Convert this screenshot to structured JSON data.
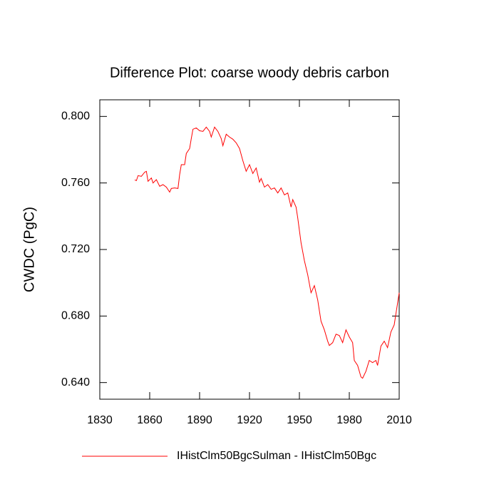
{
  "chart_data": {
    "type": "line",
    "title": "Difference Plot: coarse woody debris carbon",
    "y_label": "CWDC  (PgC)",
    "xlim": [
      1830,
      2010
    ],
    "xticks": [
      1830,
      1860,
      1890,
      1920,
      1950,
      1980,
      2010
    ],
    "ylim": [
      0.63,
      0.81
    ],
    "yticks": [
      {
        "value": 0.64,
        "label": "0.640"
      },
      {
        "value": 0.68,
        "label": "0.680"
      },
      {
        "value": 0.72,
        "label": "0.720"
      },
      {
        "value": 0.76,
        "label": "0.760"
      },
      {
        "value": 0.8,
        "label": "0.800"
      }
    ],
    "x": [
      1851,
      1852,
      1853,
      1855,
      1857,
      1858,
      1859,
      1861,
      1862,
      1864,
      1866,
      1868,
      1870,
      1872,
      1873,
      1875,
      1877,
      1878,
      1879,
      1881,
      1882,
      1884,
      1885,
      1886,
      1888,
      1890,
      1892,
      1894,
      1896,
      1897,
      1899,
      1901,
      1903,
      1904,
      1906,
      1908,
      1910,
      1912,
      1914,
      1916,
      1918,
      1920,
      1922,
      1924,
      1926,
      1927,
      1929,
      1931,
      1933,
      1935,
      1937,
      1939,
      1941,
      1943,
      1945,
      1946,
      1948,
      1949,
      1951,
      1953,
      1955,
      1957,
      1959,
      1961,
      1963,
      1965,
      1967,
      1968,
      1970,
      1972,
      1974,
      1976,
      1978,
      1980,
      1982,
      1983,
      1985,
      1987,
      1988,
      1990,
      1992,
      1994,
      1996,
      1997,
      1999,
      2001,
      2003,
      2005,
      2007,
      2008,
      2010
    ],
    "series": [
      {
        "name": "IHistClm50BgcSulman - IHistClm50Bgc",
        "color": "#ff0000",
        "values": [
          0.7618,
          0.7614,
          0.7644,
          0.764,
          0.7665,
          0.767,
          0.761,
          0.763,
          0.76,
          0.762,
          0.758,
          0.759,
          0.7575,
          0.7545,
          0.7567,
          0.757,
          0.7567,
          0.765,
          0.771,
          0.771,
          0.7777,
          0.7807,
          0.7867,
          0.7923,
          0.7931,
          0.7914,
          0.791,
          0.7936,
          0.791,
          0.7876,
          0.7936,
          0.791,
          0.7867,
          0.7824,
          0.7893,
          0.7876,
          0.7863,
          0.7841,
          0.7807,
          0.7734,
          0.767,
          0.771,
          0.7657,
          0.769,
          0.7605,
          0.7627,
          0.7575,
          0.759,
          0.7562,
          0.757,
          0.754,
          0.757,
          0.7528,
          0.754,
          0.7455,
          0.75,
          0.7455,
          0.739,
          0.724,
          0.7133,
          0.7048,
          0.694,
          0.6983,
          0.6897,
          0.6769,
          0.6717,
          0.6649,
          0.6623,
          0.664,
          0.6691,
          0.6683,
          0.664,
          0.6717,
          0.6674,
          0.664,
          0.6533,
          0.6503,
          0.6434,
          0.6426,
          0.6468,
          0.6533,
          0.652,
          0.6533,
          0.6503,
          0.6619,
          0.6649,
          0.661,
          0.6704,
          0.6747,
          0.6812,
          0.694
        ]
      }
    ]
  }
}
